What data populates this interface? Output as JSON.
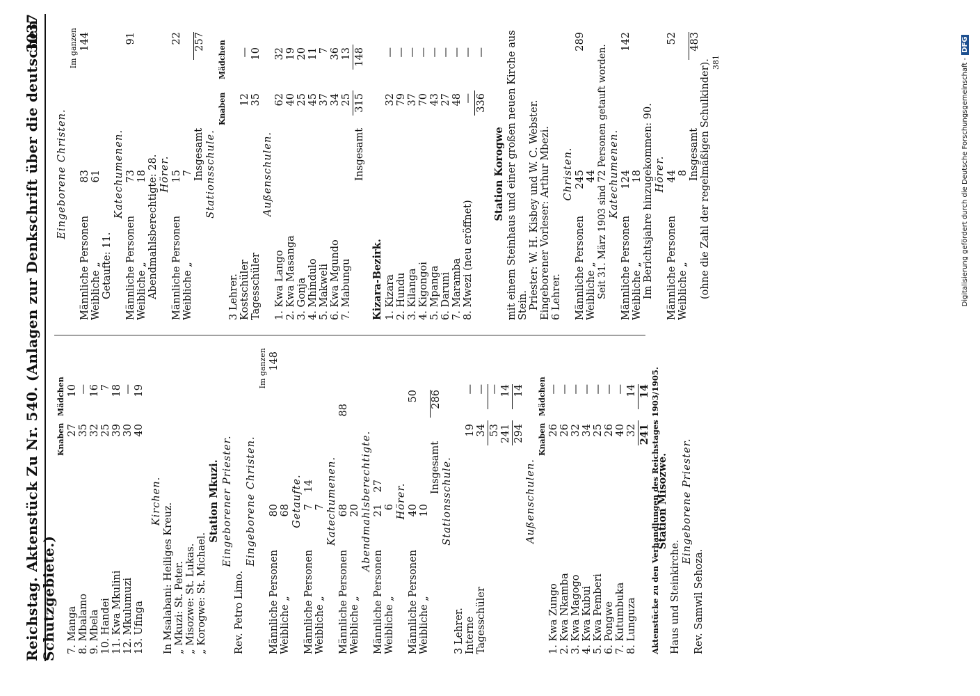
{
  "header": {
    "title": "Reichstag. Aktenstück Zu Nr. 540. (Anlagen zur Denkschrift über die deutschen Schutzgebiete.)",
    "page": "3037"
  },
  "left": {
    "col_heads": {
      "k": "Knaben",
      "m": "Mädchen",
      "g": "Im ganzen"
    },
    "rows1": [
      {
        "l": "7. Manga",
        "k": "27",
        "m": "10"
      },
      {
        "l": "8. Mbalamo",
        "k": "35",
        "m": "—"
      },
      {
        "l": "9. Mbela",
        "k": "32",
        "m": "16"
      },
      {
        "l": "10. Handei",
        "k": "25",
        "m": "7"
      },
      {
        "l": "11. Kwa Mkulini",
        "k": "39",
        "m": "18"
      },
      {
        "l": "12. Mkulumuzi",
        "k": "30",
        "m": "—"
      },
      {
        "l": "13. Ufinga",
        "k": "40",
        "m": "19"
      }
    ],
    "kirchen_h": "Kirchen.",
    "kirchen": [
      "In Msalabani: Heiliges Kreuz.",
      "„ Mkuzi: St. Peter.",
      "„ Misozwe: St. Lukas.",
      "„ Korogwe: St. Michael."
    ],
    "mkuzi_h": "Station Mkuzi.",
    "priester_h": "Eingeborener Priester.",
    "priester": "Rev. Petro Limo.",
    "christen_h": "Eingeborene Christen.",
    "ig": "Im ganzen",
    "c_m": {
      "l": "Männliche Personen",
      "v": "80",
      "g": "148"
    },
    "c_w": {
      "l": "Weibliche „",
      "v": "68"
    },
    "getaufte_h": "Getaufte.",
    "gt_m": {
      "l": "Männliche Personen",
      "v": "7",
      "g": "14"
    },
    "gt_w": {
      "l": "Weibliche „",
      "v": "7"
    },
    "kat_h": "Katechumenen.",
    "kt_m": {
      "l": "Männliche Personen",
      "v": "68",
      "g": "88"
    },
    "kt_w": {
      "l": "Weibliche „",
      "v": "20"
    },
    "ab_h": "Abendmahlsberechtigte.",
    "ab_m": {
      "l": "Männliche Personen",
      "v": "21",
      "g": "27"
    },
    "ab_w": {
      "l": "Weibliche „",
      "v": "6"
    },
    "hoe_h": "Hörer.",
    "ho_m": {
      "l": "Männliche Personen",
      "v": "40",
      "g": "50"
    },
    "ho_w": {
      "l": "Weibliche „",
      "v": "10"
    },
    "ins_l": "Insgesamt",
    "ins_v": "286",
    "ss_h": "Stationsschule.",
    "ss_rows": [
      {
        "l": "3 Lehrer.",
        "k": "",
        "m": ""
      },
      {
        "l": "Interne",
        "k": "19",
        "m": "—"
      },
      {
        "l": "Tagesschüler",
        "k": "34",
        "m": "—"
      }
    ],
    "ss_sum1": {
      "k": "53",
      "m": "—"
    },
    "ss_sum2": {
      "k": "241",
      "m": "14"
    },
    "ss_tot": {
      "k": "294",
      "m": "14"
    },
    "as_h": "Außenschulen.",
    "as_rows": [
      {
        "l": "1. Kwa Zungo",
        "k": "26",
        "m": "—"
      },
      {
        "l": "2. Kwa Nkamba",
        "k": "26",
        "m": "—"
      },
      {
        "l": "3. Kwa Magogo",
        "k": "32",
        "m": "—"
      },
      {
        "l": "4. Kwa Kubui",
        "k": "34",
        "m": "—"
      },
      {
        "l": "5. Kwa Pemberi",
        "k": "25",
        "m": "—"
      },
      {
        "l": "6. Pongwe",
        "k": "26",
        "m": "—"
      },
      {
        "l": "7. Kutumbuka",
        "k": "40",
        "m": "—"
      },
      {
        "l": "8. Lunguza",
        "k": "32",
        "m": "14"
      }
    ],
    "as_tot": {
      "k": "241",
      "m": "14"
    },
    "mis_h": "Station Misozwe.",
    "mis_t": "Haus und Steinkirche.",
    "mis_pr_h": "Eingeborene Priester.",
    "mis_pr": "Rev. Samwil Sehoza."
  },
  "right": {
    "ch_h": "Eingeborene Christen.",
    "ig": "Im ganzen",
    "c_m": {
      "l": "Männliche Personen",
      "v": "83",
      "g": "144"
    },
    "c_w": {
      "l": "Weibliche „",
      "v": "61"
    },
    "getaufte": "Getaufte: 11.",
    "kat_h": "Katechumenen.",
    "kt_m": {
      "l": "Männliche Personen",
      "v": "73",
      "g": "91"
    },
    "kt_w": {
      "l": "Weibliche „",
      "v": "18"
    },
    "abm": "Abendmahlsberechtigte: 28.",
    "hoe_h": "Hörer.",
    "ho_m": {
      "l": "Männliche Personen",
      "v": "15",
      "g": "22"
    },
    "ho_w": {
      "l": "Weibliche „",
      "v": "7"
    },
    "ins_l": "Insgesamt",
    "ins_v": "257",
    "ss_h": "Stationsschule.",
    "cols": {
      "k": "Knaben",
      "m": "Mädchen"
    },
    "ss_rows": [
      {
        "l": "3 Lehrer.",
        "k": "",
        "m": ""
      },
      {
        "l": "Kostschüler",
        "k": "12",
        "m": "—"
      },
      {
        "l": "Tagesschüler",
        "k": "35",
        "m": "10"
      }
    ],
    "as_h": "Außenschulen.",
    "as_rows": [
      {
        "l": "1. Kwa Lango",
        "k": "62",
        "m": "32"
      },
      {
        "l": "2. Kwa Masanga",
        "k": "40",
        "m": "19"
      },
      {
        "l": "3. Gonja",
        "k": "25",
        "m": "20"
      },
      {
        "l": "4. Mhindulo",
        "k": "45",
        "m": "11"
      },
      {
        "l": "5. Makweli",
        "k": "37",
        "m": "7"
      },
      {
        "l": "6. Kwa Mgundo",
        "k": "34",
        "m": "36"
      },
      {
        "l": "7. Mabungu",
        "k": "25",
        "m": "13"
      }
    ],
    "as_tot": {
      "l": "Insgesamt",
      "k": "315",
      "m": "148"
    },
    "kiz_h": "Kizara-Bezirk.",
    "kiz_rows": [
      {
        "l": "1. Kizara",
        "k": "32",
        "m": "—"
      },
      {
        "l": "2. Hundu",
        "k": "79",
        "m": "—"
      },
      {
        "l": "3. Kilanga",
        "k": "37",
        "m": "—"
      },
      {
        "l": "4. Kigongoi",
        "k": "70",
        "m": "—"
      },
      {
        "l": "5. Mpanga",
        "k": "43",
        "m": "—"
      },
      {
        "l": "6. Daruni",
        "k": "27",
        "m": "—"
      },
      {
        "l": "7. Maramba",
        "k": "48",
        "m": "—"
      },
      {
        "l": "8. Mwezi (neu eröffnet)",
        "k": "—",
        "m": "—"
      }
    ],
    "kiz_tot": {
      "k": "336",
      "m": "—"
    },
    "kor_h": "Station Korogwe",
    "kor_t": "mit einem Steinhaus und einer großen neuen Kirche aus Stein.",
    "kor_pr": "Priester: W. H. Kisbey und W. C. Webster.",
    "kor_vl": "Eingeborener Vorleser: Arthur Mbezi.",
    "kor_le": "6 Lehrer.",
    "chr_h": "Christen.",
    "ch_m": {
      "l": "Männliche Personen",
      "v": "245",
      "g": "289"
    },
    "ch_w": {
      "l": "Weibliche „",
      "v": "44"
    },
    "seit": "Seit 31. März 1903 sind 72 Personen getauft worden.",
    "kat2_h": "Katechumenen.",
    "k2_m": {
      "l": "Männliche Personen",
      "v": "124",
      "g": "142"
    },
    "k2_w": {
      "l": "Weibliche „",
      "v": "18"
    },
    "berj": "Im Berichtsjahre hinzugekommen: 90.",
    "hoe2_h": "Hörer.",
    "h2_m": {
      "l": "Männliche Personen",
      "v": "44",
      "g": "52"
    },
    "h2_w": {
      "l": "Weibliche „",
      "v": "8"
    },
    "ins2_l": "Insgesamt",
    "ins2_v": "483",
    "ohne": "(ohne die Zahl der regelmäßigen Schulkinder).",
    "num": "381"
  },
  "footer": {
    "left": "Aktenstücke zu den Verhandlungen des Reichstages 1903/1905.",
    "right": ""
  },
  "sig": {
    "text": "Digitalisierung gefördert durch die Deutsche Forschungsgemeinschaft -",
    "badge": "DFG"
  }
}
